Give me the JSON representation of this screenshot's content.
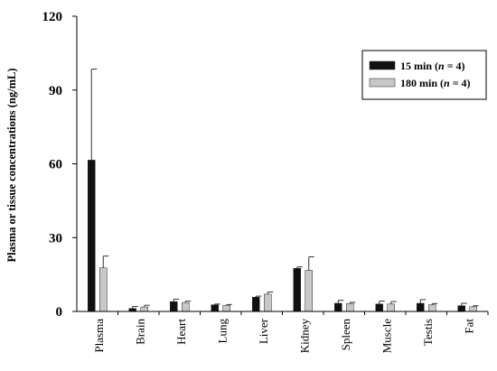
{
  "chart_data": {
    "type": "bar",
    "ylabel": "Plasma or tissue concentrations (ng/mL)",
    "ylim": [
      0,
      120
    ],
    "yticks": [
      0,
      30,
      60,
      90,
      120
    ],
    "categories": [
      "Plasma",
      "Brain",
      "Heart",
      "Lung",
      "Liver",
      "Kidney",
      "Spleen",
      "Muscle",
      "Testis",
      "Fat"
    ],
    "series": [
      {
        "name": "15 min (n = 4)",
        "color": "#111111",
        "values": [
          61.5,
          1.2,
          4.0,
          2.7,
          5.8,
          17.5,
          3.3,
          3.0,
          3.3,
          2.3
        ],
        "errors": [
          37.0,
          0.8,
          1.0,
          0.3,
          0.4,
          0.6,
          1.2,
          1.2,
          1.5,
          1.0
        ]
      },
      {
        "name": "180 min (n = 4)",
        "color": "#c8c8c8",
        "values": [
          17.7,
          1.8,
          3.6,
          2.5,
          7.0,
          16.7,
          3.2,
          3.0,
          2.7,
          1.9
        ],
        "errors": [
          4.8,
          0.7,
          0.6,
          0.3,
          0.9,
          5.5,
          0.5,
          1.0,
          0.5,
          0.4
        ]
      }
    ],
    "legend": {
      "position": "top-right",
      "entries": [
        {
          "prefix": "15 min (",
          "italic": "n",
          "suffix": " = 4)"
        },
        {
          "prefix": "180 min (",
          "italic": "n",
          "suffix": " = 4)"
        }
      ]
    },
    "grid": false
  }
}
